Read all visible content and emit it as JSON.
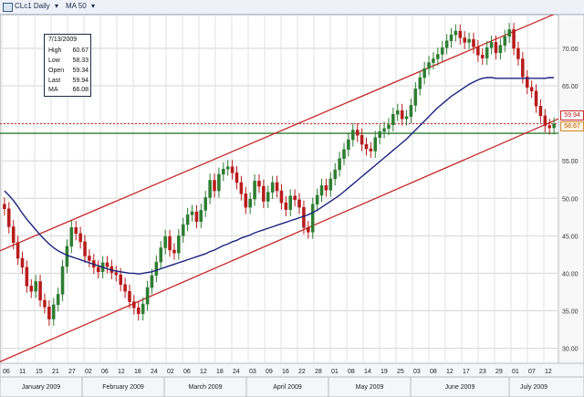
{
  "toolbar": {
    "symbol_label": "CLc1 Daily",
    "ma_label": "MA 50"
  },
  "tooltip": {
    "date": "7/13/2009",
    "rows": [
      {
        "k": "High",
        "v": "60.67"
      },
      {
        "k": "Low",
        "v": "58.33"
      },
      {
        "k": "Open",
        "v": "59.34"
      },
      {
        "k": "Last",
        "v": "59.94"
      },
      {
        "k": "MA",
        "v": "66.08"
      }
    ]
  },
  "price_tags": {
    "last": "59.94",
    "low": "58.67"
  },
  "colors": {
    "up": "#2e7d32",
    "down": "#b71c1c",
    "ma": "#1a237e",
    "channel": "#c62828",
    "level": "#2e7d32",
    "last_line": "#c62828"
  },
  "chart_data": {
    "type": "candlestick",
    "title": "",
    "ylim": [
      28,
      74.5
    ],
    "y_ticks": [
      "30.00",
      "35.00",
      "40.00",
      "45.00",
      "50.00",
      "55.00",
      "60.00",
      "65.00",
      "70.00"
    ],
    "date_ticks": [
      "06",
      "11",
      "15",
      "21",
      "27",
      "02",
      "06",
      "12",
      "18",
      "24",
      "02",
      "06",
      "12",
      "18",
      "24",
      "03",
      "09",
      "16",
      "22",
      "28",
      "01",
      "08",
      "14",
      "19",
      "25",
      "03",
      "08",
      "12",
      "17",
      "23",
      "29",
      "01",
      "07",
      "12"
    ],
    "month_labels": [
      "January 2009",
      "February 2009",
      "March 2009",
      "April 2009",
      "May 2009",
      "June 2009",
      "July 2009"
    ],
    "closes": [
      48.6,
      46.2,
      44.1,
      42.0,
      40.8,
      38.3,
      37.6,
      38.9,
      36.4,
      35.5,
      33.9,
      35.8,
      37.2,
      40.9,
      43.6,
      46.1,
      45.3,
      44.2,
      42.3,
      41.7,
      40.8,
      40.2,
      41.4,
      40.9,
      40.1,
      39.8,
      38.5,
      37.6,
      36.2,
      35.4,
      34.6,
      35.9,
      38.1,
      39.7,
      41.5,
      43.4,
      44.9,
      43.1,
      42.7,
      45.0,
      46.5,
      47.8,
      48.2,
      46.9,
      48.4,
      50.1,
      52.4,
      51.0,
      53.2,
      53.9,
      54.2,
      53.4,
      52.1,
      50.6,
      48.8,
      49.9,
      52.3,
      51.6,
      49.6,
      50.8,
      52.1,
      51.0,
      49.4,
      48.5,
      50.3,
      49.8,
      48.8,
      46.1,
      45.5,
      49.2,
      50.4,
      51.7,
      51.1,
      52.6,
      53.8,
      55.3,
      56.5,
      57.8,
      59.1,
      58.4,
      57.2,
      56.6,
      56.3,
      58.1,
      58.9,
      59.3,
      59.8,
      61.2,
      61.7,
      60.6,
      60.9,
      62.4,
      64.6,
      66.1,
      67.3,
      68.1,
      68.6,
      69.2,
      70.1,
      71.0,
      71.8,
      72.3,
      71.4,
      70.8,
      71.2,
      70.2,
      69.1,
      68.7,
      70.1,
      70.8,
      69.4,
      70.4,
      71.6,
      72.5,
      70.0,
      68.6,
      66.2,
      64.8,
      64.3,
      62.3,
      61.0,
      59.7,
      59.4,
      59.9
    ],
    "ma_50": [
      51.0,
      50.4,
      49.7,
      48.9,
      48.0,
      47.2,
      46.5,
      45.8,
      45.1,
      44.5,
      43.9,
      43.4,
      43.0,
      42.7,
      42.4,
      42.2,
      42.0,
      41.8,
      41.6,
      41.4,
      41.2,
      41.0,
      40.8,
      40.6,
      40.4,
      40.3,
      40.2,
      40.1,
      40.0,
      40.0,
      39.9,
      40.0,
      40.1,
      40.2,
      40.4,
      40.6,
      40.8,
      41.0,
      41.2,
      41.4,
      41.6,
      41.8,
      42.0,
      42.2,
      42.4,
      42.6,
      42.9,
      43.1,
      43.4,
      43.7,
      43.9,
      44.2,
      44.4,
      44.7,
      44.9,
      45.1,
      45.4,
      45.6,
      45.8,
      46.0,
      46.2,
      46.4,
      46.6,
      46.8,
      47.0,
      47.2,
      47.4,
      47.6,
      47.8,
      48.1,
      48.4,
      48.8,
      49.2,
      49.6,
      50.0,
      50.4,
      50.9,
      51.4,
      51.9,
      52.4,
      52.9,
      53.4,
      53.9,
      54.4,
      54.9,
      55.4,
      55.9,
      56.4,
      56.9,
      57.4,
      57.9,
      58.5,
      59.1,
      59.7,
      60.3,
      60.9,
      61.5,
      62.1,
      62.6,
      63.1,
      63.6,
      64.0,
      64.4,
      64.8,
      65.2,
      65.5,
      65.8,
      66.0,
      66.1,
      66.1,
      66.0,
      66.0,
      66.0,
      66.0,
      66.0,
      66.0,
      66.0,
      66.0,
      66.0,
      66.0,
      66.0,
      66.0,
      66.1,
      66.08
    ],
    "trend_lines": [
      {
        "name": "upper channel",
        "start": [
          0.0,
          43.0
        ],
        "end": [
          1.0,
          74.8
        ]
      },
      {
        "name": "lower channel",
        "start": [
          0.0,
          28.2
        ],
        "end": [
          1.0,
          60.6
        ]
      }
    ],
    "horizontal_levels": [
      58.67,
      59.94
    ],
    "grid": true
  }
}
